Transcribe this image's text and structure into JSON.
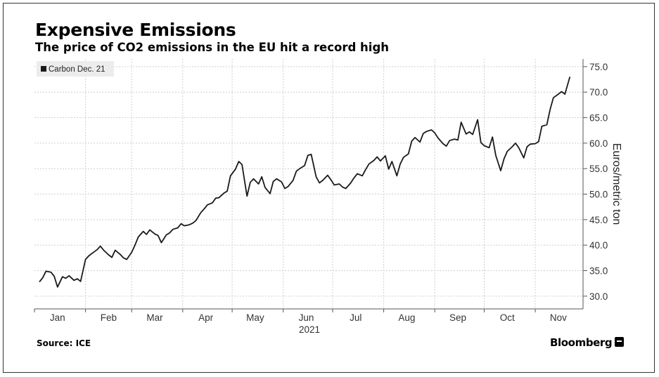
{
  "title": "Expensive Emissions",
  "subtitle": "The price of CO2 emissions in the EU hit a record high",
  "source": "Source: ICE",
  "brand": "Bloomberg",
  "colors": {
    "line": "#1a1a1a",
    "grid": "#cfcfcf",
    "axis": "#555555",
    "legend_bg": "#ececec"
  },
  "chart_data": {
    "type": "line",
    "title": "Expensive Emissions",
    "subtitle": "The price of CO2 emissions in the EU hit a record high",
    "ylabel": "Euros/metric ton",
    "xlabel": "2021",
    "year_label": "2021",
    "legend": [
      "Carbon Dec. 21"
    ],
    "legend_position": "top-left",
    "ylim": [
      27.5,
      76.5
    ],
    "y_ticks": [
      30.0,
      35.0,
      40.0,
      45.0,
      50.0,
      55.0,
      60.0,
      65.0,
      70.0,
      75.0
    ],
    "y_tick_labels": [
      "30.0",
      "35.0",
      "40.0",
      "45.0",
      "50.0",
      "55.0",
      "60.0",
      "65.0",
      "70.0",
      "75.0"
    ],
    "x_tick_labels": [
      "Jan",
      "Feb",
      "Mar",
      "Apr",
      "May",
      "Jun",
      "Jul",
      "Aug",
      "Sep",
      "Oct",
      "Nov"
    ],
    "grid": true,
    "series": [
      {
        "name": "Carbon Dec. 21",
        "x": [
          "2021-01-04",
          "2021-01-06",
          "2021-01-08",
          "2021-01-11",
          "2021-01-13",
          "2021-01-15",
          "2021-01-18",
          "2021-01-20",
          "2021-01-22",
          "2021-01-25",
          "2021-01-27",
          "2021-01-29",
          "2021-02-01",
          "2021-02-03",
          "2021-02-05",
          "2021-02-08",
          "2021-02-10",
          "2021-02-12",
          "2021-02-15",
          "2021-02-17",
          "2021-02-19",
          "2021-02-22",
          "2021-02-24",
          "2021-02-26",
          "2021-03-01",
          "2021-03-03",
          "2021-03-05",
          "2021-03-08",
          "2021-03-10",
          "2021-03-12",
          "2021-03-15",
          "2021-03-17",
          "2021-03-19",
          "2021-03-22",
          "2021-03-24",
          "2021-03-26",
          "2021-03-29",
          "2021-03-31",
          "2021-04-02",
          "2021-04-05",
          "2021-04-07",
          "2021-04-09",
          "2021-04-12",
          "2021-04-14",
          "2021-04-16",
          "2021-04-19",
          "2021-04-21",
          "2021-04-23",
          "2021-04-26",
          "2021-04-28",
          "2021-04-30",
          "2021-05-03",
          "2021-05-05",
          "2021-05-07",
          "2021-05-10",
          "2021-05-12",
          "2021-05-14",
          "2021-05-17",
          "2021-05-19",
          "2021-05-21",
          "2021-05-24",
          "2021-05-26",
          "2021-05-28",
          "2021-05-31",
          "2021-06-02",
          "2021-06-04",
          "2021-06-07",
          "2021-06-09",
          "2021-06-11",
          "2021-06-14",
          "2021-06-16",
          "2021-06-18",
          "2021-06-21",
          "2021-06-23",
          "2021-06-25",
          "2021-06-28",
          "2021-06-30",
          "2021-07-02",
          "2021-07-05",
          "2021-07-07",
          "2021-07-09",
          "2021-07-12",
          "2021-07-14",
          "2021-07-16",
          "2021-07-19",
          "2021-07-21",
          "2021-07-23",
          "2021-07-26",
          "2021-07-28",
          "2021-07-30",
          "2021-08-02",
          "2021-08-04",
          "2021-08-06",
          "2021-08-09",
          "2021-08-11",
          "2021-08-13",
          "2021-08-16",
          "2021-08-18",
          "2021-08-20",
          "2021-08-23",
          "2021-08-25",
          "2021-08-27",
          "2021-08-30",
          "2021-09-01",
          "2021-09-03",
          "2021-09-06",
          "2021-09-08",
          "2021-09-10",
          "2021-09-13",
          "2021-09-15",
          "2021-09-17",
          "2021-09-20",
          "2021-09-22",
          "2021-09-24",
          "2021-09-27",
          "2021-09-29",
          "2021-10-01",
          "2021-10-04",
          "2021-10-06",
          "2021-10-08",
          "2021-10-11",
          "2021-10-13",
          "2021-10-15",
          "2021-10-18",
          "2021-10-20",
          "2021-10-22",
          "2021-10-25",
          "2021-10-27",
          "2021-10-29",
          "2021-11-01",
          "2021-11-03",
          "2021-11-05",
          "2021-11-08",
          "2021-11-10",
          "2021-11-12",
          "2021-11-15",
          "2021-11-17",
          "2021-11-19",
          "2021-11-22"
        ],
        "values": [
          32.8,
          33.6,
          34.9,
          34.7,
          33.9,
          31.8,
          33.8,
          33.5,
          34.0,
          33.1,
          33.4,
          32.9,
          37.2,
          37.9,
          38.4,
          39.1,
          39.8,
          39.0,
          38.1,
          37.6,
          39.0,
          38.2,
          37.5,
          37.2,
          38.6,
          40.0,
          41.6,
          42.7,
          42.1,
          43.0,
          42.2,
          41.9,
          40.5,
          42.0,
          42.4,
          43.1,
          43.4,
          44.2,
          43.8,
          44.0,
          44.3,
          44.8,
          46.4,
          47.1,
          47.9,
          48.3,
          49.2,
          49.3,
          50.2,
          50.6,
          53.6,
          54.9,
          56.4,
          55.8,
          49.6,
          52.3,
          53.0,
          52.0,
          53.4,
          51.3,
          50.1,
          52.5,
          53.0,
          52.4,
          51.1,
          51.5,
          52.7,
          54.5,
          55.0,
          55.6,
          57.6,
          57.8,
          53.4,
          52.2,
          52.7,
          53.7,
          52.8,
          51.8,
          52.0,
          51.4,
          51.1,
          52.2,
          53.2,
          54.0,
          53.6,
          54.8,
          55.9,
          56.6,
          57.3,
          56.5,
          57.5,
          54.9,
          56.4,
          53.6,
          55.9,
          57.2,
          57.9,
          60.4,
          61.1,
          60.2,
          61.9,
          62.3,
          62.6,
          62.0,
          61.0,
          59.9,
          59.4,
          60.5,
          60.8,
          60.6,
          64.1,
          61.8,
          62.2,
          61.7,
          64.6,
          60.1,
          59.5,
          59.1,
          61.2,
          57.6,
          54.6,
          56.9,
          58.4,
          59.3,
          60.0,
          59.1,
          57.1,
          59.3,
          59.8,
          59.9,
          60.3,
          63.3,
          63.6,
          66.6,
          68.9,
          69.6,
          70.1,
          69.6,
          73.0
        ]
      }
    ]
  }
}
